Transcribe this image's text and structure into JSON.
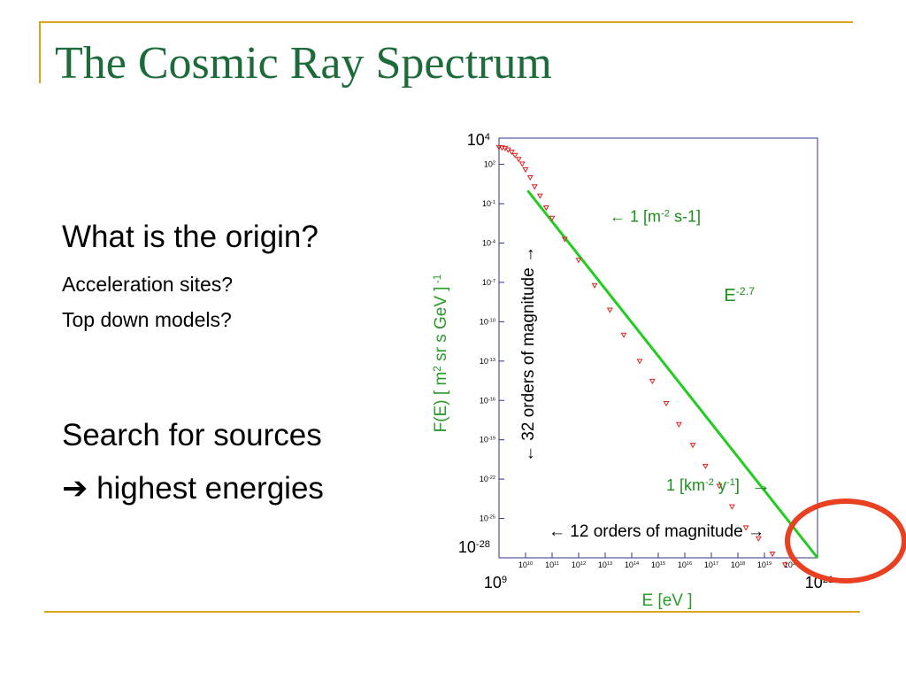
{
  "slide": {
    "title": "The Cosmic Ray Spectrum",
    "bullets": [
      "What is the origin?",
      "Acceleration sites?",
      "Top down models?",
      "Search for sources",
      "highest energies"
    ],
    "arrow_glyph": "➔"
  },
  "colors": {
    "title": "#1d6b3a",
    "rule": "#d9a520",
    "fit_line": "#22cc22",
    "data_points": "#e02020",
    "highlight_circle": "#e84020",
    "axis_label": "#2a9a2a"
  },
  "chart_data": {
    "type": "scatter",
    "xlabel": "E [eV ]",
    "ylabel": "F(E)  [ m² sr s GeV ] -1",
    "x_scale": "log",
    "y_scale": "log",
    "xlim": [
      1000000000.0,
      1e+21
    ],
    "ylim": [
      1e-28,
      10000.0
    ],
    "x_ticks": [
      "10^9",
      "10^10",
      "10^11",
      "10^12",
      "10^13",
      "10^14",
      "10^15",
      "10^16",
      "10^17",
      "10^18",
      "10^19",
      "10^20",
      "10^21"
    ],
    "y_ticks": [
      "10^4",
      "10^2",
      "10^-1",
      "10^-4",
      "10^-7",
      "10^-10",
      "10^-13",
      "10^-16",
      "10^-19",
      "10^-22",
      "10^-25",
      "10^-28"
    ],
    "axis_end_labels": {
      "x_min": "10^9",
      "x_max": "10^21",
      "y_max": "10^4",
      "y_min": "10^-28"
    },
    "fit_line": {
      "label": "E-2.7",
      "points": [
        [
          12000000000.0,
          1.0
        ],
        [
          1e+21,
          1e-28
        ]
      ]
    },
    "series": [
      {
        "values": [
          [
            1000000000.0,
            2000
          ],
          [
            1300000000.0,
            1900
          ],
          [
            1700000000.0,
            1700
          ],
          [
            2200000000.0,
            1300
          ],
          [
            3000000000.0,
            900
          ],
          [
            4000000000.0,
            500
          ],
          [
            5500000000.0,
            250
          ],
          [
            7500000000.0,
            110
          ],
          [
            10000000000.0,
            40
          ],
          [
            15000000000.0,
            10
          ],
          [
            22000000000.0,
            2
          ],
          [
            35000000000.0,
            0.4
          ],
          [
            60000000000.0,
            0.05
          ],
          [
            100000000000.0,
            0.008
          ],
          [
            300000000000.0,
            0.0002
          ],
          [
            1000000000000.0,
            5e-06
          ],
          [
            4000000000000.0,
            6e-08
          ],
          [
            15000000000000.0,
            8e-10
          ],
          [
            50000000000000.0,
            1e-11
          ],
          [
            200000000000000.0,
            1e-13
          ],
          [
            600000000000000.0,
            3e-15
          ],
          [
            2000000000000000.0,
            6e-17
          ],
          [
            6000000000000000.0,
            1.5e-18
          ],
          [
            2e+16,
            4e-20
          ],
          [
            6e+16,
            1e-21
          ],
          [
            2e+17,
            3e-23
          ],
          [
            6e+17,
            8e-25
          ],
          [
            2e+18,
            2e-26
          ],
          [
            6e+18,
            3e-27
          ],
          [
            2e+19,
            2e-28
          ],
          [
            6e+19,
            3e-29
          ]
        ]
      }
    ],
    "annotations": [
      {
        "id": "flux1",
        "text": "← 1 [m-2 s-1]",
        "at": [
          20000000000000.0,
          0.015
        ]
      },
      {
        "id": "flux2",
        "text": "1 [km-2 y-1]",
        "at": [
          2e+16,
          3e-23
        ]
      },
      {
        "id": "flux2_arrow",
        "text": "→",
        "at": [
          8e+18,
          3e-23
        ]
      },
      {
        "id": "slope",
        "text": "E-2.7",
        "at": [
          3e+18,
          1e-08
        ]
      },
      {
        "id": "vertical_span",
        "text": "← 32 orders of magnitude →"
      },
      {
        "id": "horizontal_span",
        "text": "← 12 orders of magnitude →"
      }
    ]
  }
}
